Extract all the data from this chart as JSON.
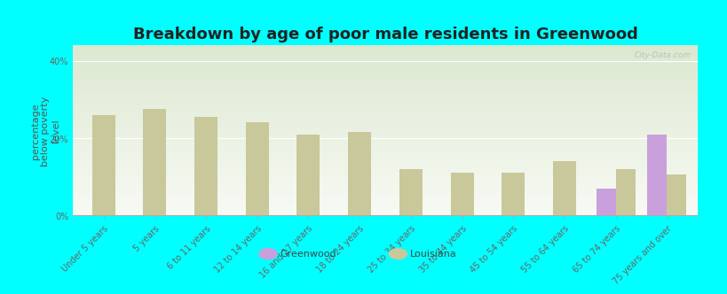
{
  "title": "Breakdown by age of poor male residents in Greenwood",
  "ylabel": "percentage\nbelow poverty\nlevel",
  "background_color": "#00FFFF",
  "categories": [
    "Under 5 years",
    "5 years",
    "6 to 11 years",
    "12 to 14 years",
    "16 and 17 years",
    "18 to 24 years",
    "25 to 34 years",
    "35 to 44 years",
    "45 to 54 years",
    "55 to 64 years",
    "65 to 74 years",
    "75 years and over"
  ],
  "greenwood_values": [
    null,
    null,
    null,
    null,
    null,
    null,
    null,
    null,
    null,
    null,
    7.0,
    21.0
  ],
  "louisiana_values": [
    26.0,
    27.5,
    25.5,
    24.0,
    21.0,
    21.5,
    12.0,
    11.0,
    11.0,
    14.0,
    12.0,
    10.5
  ],
  "greenwood_color": "#c9a0dc",
  "louisiana_color": "#c8c89a",
  "single_bar_width": 0.45,
  "pair_bar_width": 0.38,
  "ylim": [
    0,
    44
  ],
  "yticks": [
    0,
    20,
    40
  ],
  "ytick_labels": [
    "0%",
    "20%",
    "40%"
  ],
  "title_fontsize": 13,
  "axis_fontsize": 8,
  "tick_fontsize": 7,
  "watermark": "City-Data.com"
}
